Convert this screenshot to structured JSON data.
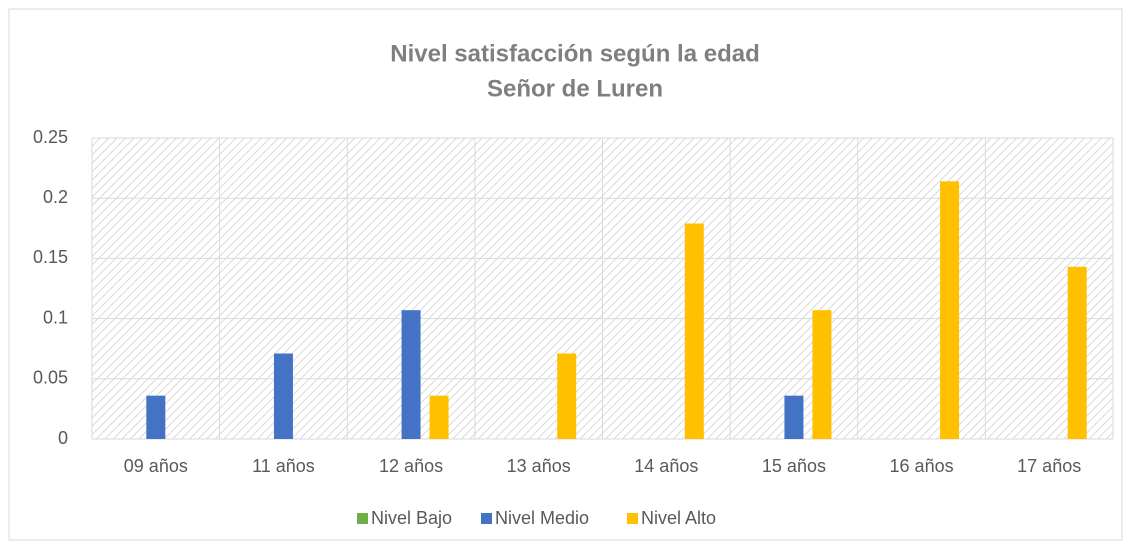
{
  "chart_data": {
    "type": "bar",
    "title": "Nivel satisfacción según la edad",
    "subtitle": "Señor de Luren",
    "categories": [
      "09 años",
      "11 años",
      "12 años",
      "13 años",
      "14 años",
      "15 años",
      "16 años",
      "17 años"
    ],
    "series": [
      {
        "name": "Nivel Bajo",
        "color": "#70ad47",
        "values": [
          0,
          0,
          0,
          0,
          0,
          0,
          0,
          0
        ]
      },
      {
        "name": "Nivel Medio",
        "color": "#4472c4",
        "values": [
          0.036,
          0.071,
          0.107,
          0,
          0,
          0.036,
          0,
          0
        ]
      },
      {
        "name": "Nivel Alto",
        "color": "#ffc000",
        "values": [
          0,
          0,
          0.036,
          0.071,
          0.179,
          0.107,
          0.214,
          0.143
        ]
      }
    ],
    "ylim": [
      0,
      0.25
    ],
    "yticks": [
      0,
      0.05,
      0.1,
      0.15,
      0.2,
      0.25
    ],
    "grid": true,
    "legend": "bottom"
  }
}
